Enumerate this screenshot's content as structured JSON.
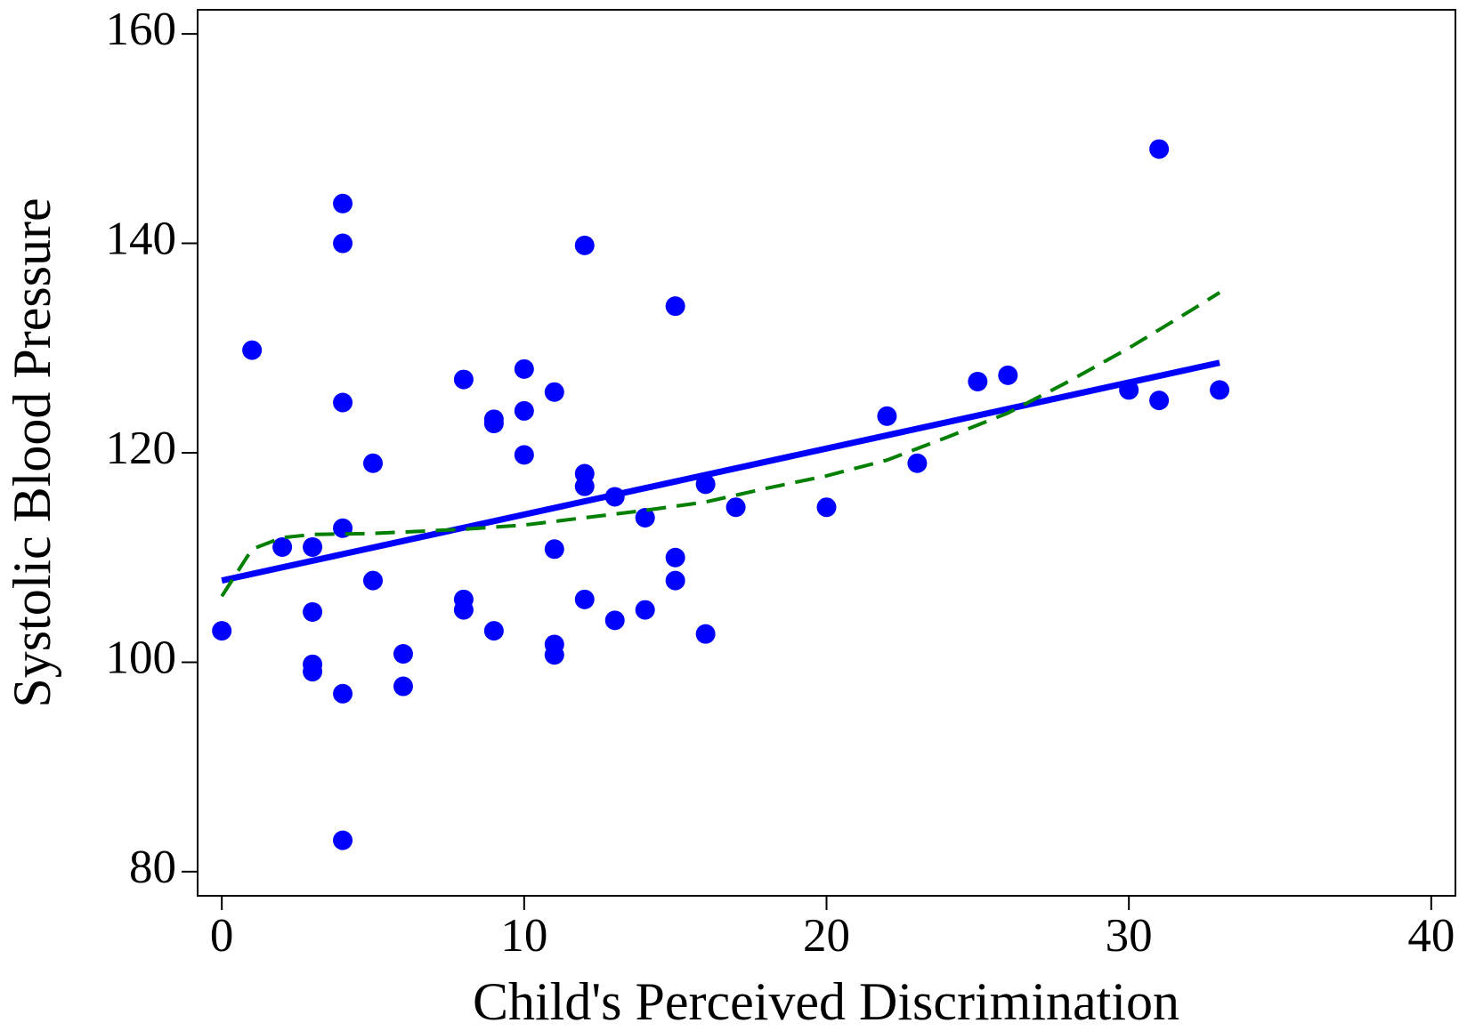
{
  "chart_data": {
    "type": "scatter",
    "x_label": "Child's Perceived Discrimination",
    "y_label": "Systolic Blood Pressure",
    "xlim": [
      -0.8,
      40.8
    ],
    "ylim": [
      77.7,
      162.3
    ],
    "xticks": [
      0,
      10,
      20,
      30,
      40
    ],
    "yticks": [
      80,
      100,
      120,
      140,
      160
    ],
    "grid": false,
    "series": [
      {
        "type": "scatter",
        "color": "#0000ff",
        "x": [
          0,
          1,
          2,
          3,
          3,
          3,
          3,
          4,
          4,
          4,
          4,
          4,
          4,
          5,
          5,
          6,
          6,
          8,
          8,
          8,
          9,
          9,
          9,
          10,
          10,
          10,
          11,
          11,
          11,
          11,
          12,
          12,
          12,
          12,
          13,
          13,
          14,
          14,
          15,
          15,
          15,
          16,
          16,
          17,
          20,
          22,
          23,
          25,
          26,
          30,
          31,
          31,
          33
        ],
        "values": [
          103,
          129.8,
          111,
          111,
          104.8,
          99.8,
          99.1,
          143.8,
          140,
          124.8,
          112.8,
          97,
          83,
          119,
          107.8,
          100.8,
          97.7,
          127,
          106,
          105,
          123.2,
          122.8,
          103,
          128,
          124,
          119.8,
          125.8,
          110.8,
          101.7,
          100.7,
          139.8,
          118,
          116.8,
          106,
          115.8,
          104,
          113.8,
          105,
          134,
          110,
          107.8,
          117,
          102.7,
          114.8,
          114.8,
          123.5,
          119,
          126.8,
          127.4,
          126,
          149,
          125,
          126
        ]
      },
      {
        "type": "line",
        "color": "#0000ff",
        "width": 7,
        "dash": false,
        "x": [
          0,
          33
        ],
        "values": [
          107.8,
          128.6
        ]
      },
      {
        "type": "line",
        "color": "#007f00",
        "width": 4,
        "dash": true,
        "x": [
          0,
          1,
          2,
          3,
          5,
          8,
          10,
          12,
          14,
          16,
          18,
          20,
          22,
          24,
          26,
          28,
          30,
          32,
          33
        ],
        "values": [
          106.3,
          110.8,
          111.9,
          112.2,
          112.3,
          112.7,
          113.1,
          113.8,
          114.5,
          115.3,
          116.6,
          117.8,
          119.3,
          121.5,
          123.8,
          126.8,
          130,
          133.5,
          135.3
        ]
      }
    ]
  }
}
